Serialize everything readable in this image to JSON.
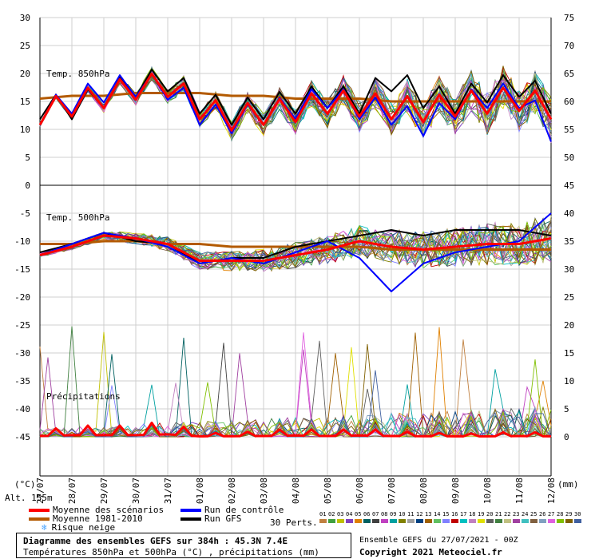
{
  "chart_data": {
    "type": "line",
    "dates": [
      "27/07",
      "28/07",
      "29/07",
      "30/07",
      "31/07",
      "01/08",
      "02/08",
      "03/08",
      "04/08",
      "05/08",
      "06/08",
      "07/08",
      "08/08",
      "09/08",
      "10/08",
      "11/08",
      "12/08"
    ],
    "left_axis": {
      "unit_label": "(°C)",
      "ticks": [
        30,
        25,
        20,
        15,
        10,
        5,
        0,
        -5,
        -10,
        -15,
        -20,
        -25,
        -30,
        -35,
        -40,
        -45
      ]
    },
    "right_axis": {
      "unit_label": "(mm)",
      "ticks": [
        75,
        70,
        65,
        60,
        55,
        50,
        45,
        40,
        35,
        30,
        25,
        20,
        15,
        10,
        5,
        0
      ]
    },
    "panels": [
      {
        "label": "Temp. 850hPa"
      },
      {
        "label": "Temp. 500hPa"
      },
      {
        "label": "Précipitations"
      }
    ],
    "series": [
      {
        "name": "Moyenne des scénarios",
        "color": "#ff0000",
        "t850": [
          13,
          14.5,
          16,
          17.5,
          18,
          14,
          12,
          13,
          13.5,
          15,
          14.5,
          14,
          13.5,
          14.5,
          15,
          15.5,
          14
        ],
        "t500": [
          -12.5,
          -11,
          -9,
          -9.5,
          -10.5,
          -13.5,
          -13.5,
          -13.5,
          -12.5,
          -11.5,
          -10,
          -11,
          -11.5,
          -11,
          -10.5,
          -10.5,
          -9.5
        ],
        "precip_mm": [
          0.5,
          1,
          1,
          1,
          1.5,
          0.3,
          0.4,
          0.5,
          0.8,
          0.5,
          0.8,
          0.5,
          0.4,
          0.3,
          0.3,
          0.5,
          0.3
        ]
      },
      {
        "name": "Moyenne 1981-2010",
        "color": "#b35a00",
        "t850": [
          15.5,
          16,
          16,
          16.5,
          16.5,
          16.5,
          16,
          16,
          15.5,
          15.5,
          15.5,
          15,
          15,
          15,
          15,
          15,
          15
        ],
        "t500": [
          -10.5,
          -10.5,
          -10,
          -10,
          -10.5,
          -10.5,
          -11,
          -11,
          -11,
          -11,
          -11,
          -11.5,
          -11.5,
          -11.5,
          -11.5,
          -11.5,
          -11.5
        ]
      },
      {
        "name": "Run de contrôle",
        "color": "#0000ff",
        "t850": [
          13,
          15,
          17,
          18,
          17.5,
          13,
          11.5,
          13,
          14,
          16,
          14,
          13,
          11,
          14,
          16,
          16,
          10
        ],
        "t500": [
          -12.5,
          -10.5,
          -8.5,
          -9.5,
          -11,
          -14,
          -13,
          -14,
          -12,
          -10,
          -13,
          -19,
          -14,
          -12,
          -11,
          -10,
          -5
        ]
      },
      {
        "name": "Run GFS",
        "color": "#000000",
        "t850": [
          14,
          14,
          16,
          18,
          19,
          15,
          13,
          14,
          15,
          16,
          15,
          19,
          16,
          15,
          17,
          18,
          15
        ],
        "t500": [
          -12,
          -10.5,
          -8.5,
          -10,
          -10.5,
          -14,
          -13,
          -13,
          -11,
          -10,
          -9,
          -8,
          -9,
          -8,
          -8,
          -8,
          -9
        ]
      }
    ],
    "ensemble": {
      "label": "30 Perts.",
      "members": [
        "01",
        "02",
        "03",
        "04",
        "05",
        "06",
        "07",
        "08",
        "09",
        "10",
        "11",
        "12",
        "13",
        "14",
        "15",
        "16",
        "17",
        "18",
        "19",
        "20",
        "21",
        "22",
        "23",
        "24",
        "25",
        "26",
        "27",
        "28",
        "29",
        "30"
      ],
      "colors": [
        "#c08040",
        "#40a040",
        "#c0c000",
        "#8040c0",
        "#e08000",
        "#006060",
        "#404040",
        "#c040c0",
        "#00a0a0",
        "#808000",
        "#a0a0a0",
        "#004080",
        "#a06000",
        "#60c060",
        "#8080ff",
        "#c00000",
        "#00c0c0",
        "#c080c0",
        "#e0e000",
        "#606060",
        "#408040",
        "#c0c080",
        "#a040a0",
        "#40c0c0",
        "#806040",
        "#80a0c0",
        "#e060e0",
        "#80c000",
        "#806000",
        "#4060a0"
      ]
    },
    "legend": {
      "snow_label": "Risque neige",
      "altitude": "Alt. 155m"
    },
    "info": {
      "title": "Diagramme des ensembles GEFS sur 384h : 45.3N 7.4E",
      "subtitle": "Températures 850hPa et 500hPa (°C) , précipitations (mm)",
      "run": "Ensemble GEFS du 27/07/2021 - 00Z",
      "copyright": "Copyright 2021 Meteociel.fr"
    }
  }
}
